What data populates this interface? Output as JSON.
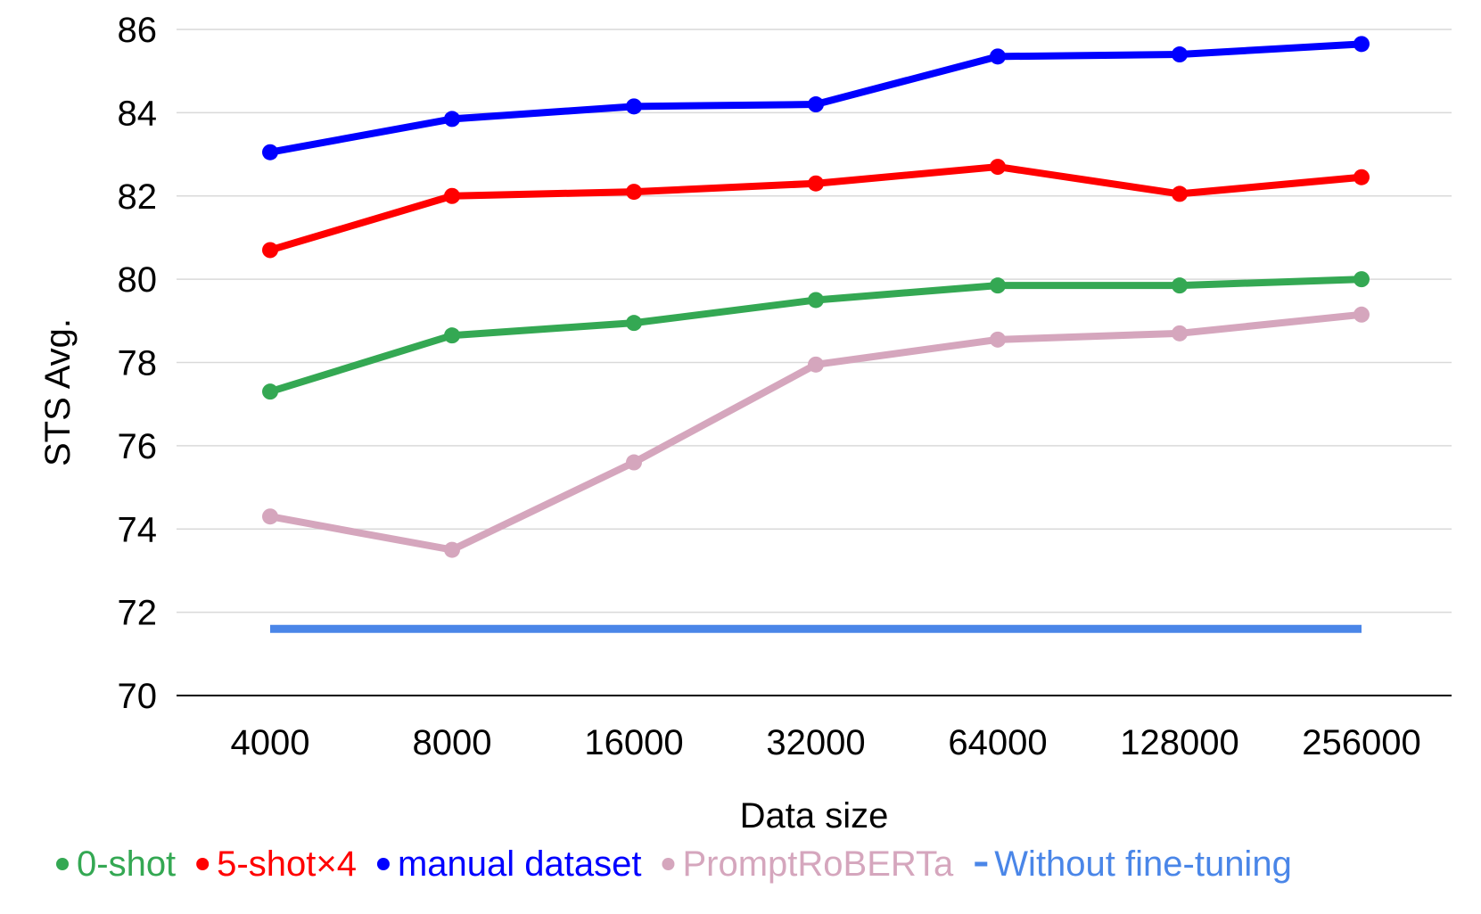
{
  "chart_data": {
    "type": "line",
    "title": "",
    "xlabel": "Data size",
    "ylabel": "STS Avg.",
    "categories": [
      "4000",
      "8000",
      "16000",
      "32000",
      "64000",
      "128000",
      "256000"
    ],
    "ylim": [
      70,
      86
    ],
    "yticks": [
      70,
      72,
      74,
      76,
      78,
      80,
      82,
      84,
      86
    ],
    "grid": "horizontal",
    "legend_position": "bottom",
    "series": [
      {
        "name": "0-shot",
        "color": "#34a853",
        "marker": "circle",
        "values": [
          77.3,
          78.65,
          78.95,
          79.5,
          79.85,
          79.85,
          80.0
        ]
      },
      {
        "name": "5-shot×4",
        "color": "#ff0000",
        "marker": "circle",
        "values": [
          80.7,
          82.0,
          82.1,
          82.3,
          82.7,
          82.05,
          82.45
        ]
      },
      {
        "name": "manual dataset",
        "color": "#0000ff",
        "marker": "circle",
        "values": [
          83.05,
          83.85,
          84.15,
          84.2,
          85.35,
          85.4,
          85.65
        ]
      },
      {
        "name": "PromptRoBERTa",
        "color": "#d5a6bd",
        "marker": "circle",
        "values": [
          74.3,
          73.5,
          75.6,
          77.95,
          78.55,
          78.7,
          79.15
        ]
      },
      {
        "name": "Without fine-tuning",
        "color": "#4a86e8",
        "marker": "none",
        "values": [
          71.6,
          71.6,
          71.6,
          71.6,
          71.6,
          71.6,
          71.6
        ]
      }
    ]
  }
}
